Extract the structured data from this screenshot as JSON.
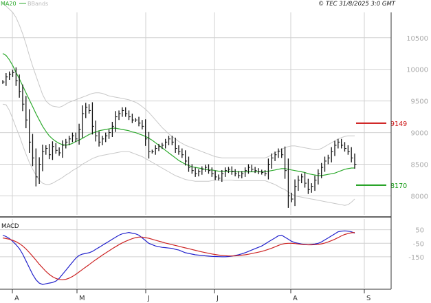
{
  "header": {
    "legend_ma": "MA20",
    "legend_bbands": "BBands",
    "copyright": "© TEC 31/8/2025 3:0 GMT"
  },
  "macd_panel": {
    "title": "MACD"
  },
  "colors": {
    "ma": "#2eaa2e",
    "bbands": "#c8c8c8",
    "price": "#111111",
    "resistance": "#cc1111",
    "support": "#119911",
    "macd": "#2222cc",
    "signal": "#cc2222",
    "grid": "#d0d0d0",
    "axis_text": "#aaaaaa"
  },
  "chart_data": [
    {
      "type": "ohlc",
      "ylim": [
        7700,
        10900
      ],
      "y_ticks": [
        {
          "value": 8000,
          "label": "8000"
        },
        {
          "value": 8500,
          "label": "8500"
        },
        {
          "value": 9000,
          "label": "9000"
        },
        {
          "value": 9500,
          "label": "9500"
        },
        {
          "value": 10000,
          "label": "10000"
        },
        {
          "value": 10500,
          "label": "10500"
        }
      ],
      "x_ticks": [
        "A",
        "M",
        "J",
        "J",
        "A",
        "S"
      ],
      "levels": [
        {
          "name": "resistance",
          "value": 9149,
          "label": "9149"
        },
        {
          "name": "support",
          "value": 8170,
          "label": "8170"
        }
      ],
      "price": [
        9800,
        9880,
        9920,
        9950,
        9820,
        9650,
        9450,
        9200,
        8850,
        8600,
        8300,
        8500,
        8700,
        8750,
        8650,
        8780,
        8720,
        8680,
        8800,
        8850,
        8900,
        8950,
        8900,
        9050,
        9300,
        9400,
        9350,
        9100,
        8950,
        8850,
        8900,
        8950,
        9000,
        9100,
        9250,
        9300,
        9350,
        9300,
        9250,
        9200,
        9200,
        9150,
        9100,
        8900,
        8700,
        8700,
        8750,
        8780,
        8800,
        8850,
        8900,
        8850,
        8750,
        8700,
        8650,
        8550,
        8450,
        8400,
        8350,
        8380,
        8420,
        8450,
        8400,
        8350,
        8300,
        8280,
        8350,
        8400,
        8420,
        8380,
        8350,
        8320,
        8350,
        8400,
        8450,
        8420,
        8400,
        8380,
        8370,
        8350,
        8500,
        8600,
        8650,
        8700,
        8650,
        8400,
        8000,
        7950,
        8150,
        8250,
        8300,
        8200,
        8100,
        8150,
        8250,
        8350,
        8450,
        8550,
        8600,
        8700,
        8800,
        8850,
        8800,
        8750,
        8700,
        8600,
        8500
      ],
      "ma20": [
        10250,
        10220,
        10150,
        10060,
        9950,
        9850,
        9740,
        9630,
        9520,
        9410,
        9300,
        9200,
        9100,
        9020,
        8950,
        8900,
        8860,
        8830,
        8810,
        8800,
        8810,
        8830,
        8860,
        8880,
        8910,
        8940,
        8970,
        8990,
        9010,
        9030,
        9040,
        9050,
        9060,
        9070,
        9070,
        9060,
        9050,
        9040,
        9030,
        9010,
        9000,
        8980,
        8960,
        8940,
        8910,
        8880,
        8840,
        8800,
        8760,
        8720,
        8680,
        8640,
        8600,
        8560,
        8530,
        8500,
        8480,
        8460,
        8450,
        8440,
        8430,
        8420,
        8410,
        8410,
        8400,
        8390,
        8390,
        8390,
        8390,
        8390,
        8380,
        8380,
        8380,
        8380,
        8380,
        8380,
        8380,
        8380,
        8380,
        8380,
        8390,
        8400,
        8410,
        8420,
        8430,
        8430,
        8420,
        8410,
        8400,
        8390,
        8380,
        8370,
        8350,
        8340,
        8330,
        8320,
        8320,
        8330,
        8340,
        8350,
        8360,
        8380,
        8400,
        8420,
        8430,
        8440,
        8440
      ],
      "bb_upper": [
        11050,
        11000,
        10950,
        10900,
        10820,
        10700,
        10560,
        10400,
        10220,
        10050,
        9900,
        9750,
        9600,
        9500,
        9450,
        9420,
        9410,
        9400,
        9420,
        9450,
        9480,
        9500,
        9520,
        9540,
        9560,
        9580,
        9600,
        9620,
        9630,
        9630,
        9620,
        9600,
        9580,
        9570,
        9560,
        9550,
        9540,
        9530,
        9520,
        9500,
        9480,
        9450,
        9410,
        9370,
        9320,
        9260,
        9200,
        9140,
        9080,
        9030,
        8980,
        8940,
        8900,
        8860,
        8830,
        8800,
        8780,
        8760,
        8740,
        8720,
        8700,
        8680,
        8660,
        8640,
        8620,
        8610,
        8600,
        8600,
        8600,
        8600,
        8600,
        8600,
        8600,
        8600,
        8600,
        8600,
        8600,
        8600,
        8600,
        8600,
        8620,
        8650,
        8680,
        8710,
        8740,
        8760,
        8780,
        8790,
        8790,
        8780,
        8770,
        8760,
        8750,
        8740,
        8730,
        8730,
        8750,
        8780,
        8810,
        8840,
        8870,
        8900,
        8920,
        8940,
        8950,
        8950,
        8950
      ],
      "bb_lower": [
        9450,
        9440,
        9350,
        9220,
        9080,
        8950,
        8800,
        8660,
        8530,
        8420,
        8330,
        8250,
        8200,
        8180,
        8180,
        8200,
        8230,
        8260,
        8290,
        8330,
        8360,
        8400,
        8430,
        8460,
        8500,
        8530,
        8560,
        8590,
        8610,
        8630,
        8640,
        8650,
        8660,
        8670,
        8680,
        8690,
        8700,
        8700,
        8700,
        8680,
        8660,
        8640,
        8620,
        8590,
        8560,
        8530,
        8500,
        8470,
        8440,
        8410,
        8380,
        8350,
        8320,
        8300,
        8280,
        8260,
        8250,
        8240,
        8230,
        8230,
        8230,
        8230,
        8230,
        8240,
        8250,
        8250,
        8250,
        8250,
        8250,
        8250,
        8240,
        8240,
        8240,
        8240,
        8240,
        8240,
        8240,
        8240,
        8240,
        8240,
        8220,
        8200,
        8180,
        8150,
        8120,
        8100,
        8060,
        8030,
        8000,
        7990,
        7980,
        7970,
        7960,
        7950,
        7940,
        7930,
        7920,
        7910,
        7900,
        7890,
        7880,
        7870,
        7860,
        7850,
        7860,
        7900,
        7950
      ]
    },
    {
      "type": "line",
      "title": "MACD",
      "ylim": [
        -380,
        130
      ],
      "y_ticks": [
        {
          "value": 50,
          "label": "50"
        },
        {
          "value": -50,
          "label": "-50"
        },
        {
          "value": -150,
          "label": "-150"
        }
      ],
      "series": [
        {
          "key": "macd",
          "values": [
            10,
            0,
            -15,
            -35,
            -60,
            -90,
            -130,
            -180,
            -230,
            -280,
            -320,
            -345,
            -355,
            -350,
            -345,
            -340,
            -330,
            -310,
            -280,
            -250,
            -220,
            -190,
            -160,
            -140,
            -130,
            -125,
            -120,
            -110,
            -95,
            -80,
            -65,
            -50,
            -35,
            -20,
            -5,
            10,
            20,
            25,
            30,
            25,
            20,
            10,
            -10,
            -30,
            -50,
            -60,
            -70,
            -75,
            -80,
            -82,
            -85,
            -88,
            -95,
            -100,
            -110,
            -120,
            -125,
            -130,
            -135,
            -138,
            -140,
            -143,
            -145,
            -147,
            -148,
            -149,
            -150,
            -150,
            -148,
            -145,
            -140,
            -135,
            -128,
            -120,
            -110,
            -100,
            -90,
            -80,
            -70,
            -55,
            -40,
            -25,
            -10,
            5,
            10,
            -5,
            -20,
            -35,
            -45,
            -50,
            -55,
            -58,
            -60,
            -58,
            -55,
            -50,
            -40,
            -25,
            -10,
            5,
            20,
            35,
            40,
            42,
            40,
            35,
            25
          ]
        },
        {
          "key": "signal",
          "values": [
            -10,
            -15,
            -20,
            -28,
            -38,
            -52,
            -70,
            -92,
            -118,
            -146,
            -175,
            -205,
            -232,
            -258,
            -280,
            -298,
            -310,
            -318,
            -320,
            -317,
            -308,
            -296,
            -280,
            -262,
            -244,
            -226,
            -208,
            -190,
            -172,
            -155,
            -138,
            -122,
            -106,
            -90,
            -75,
            -60,
            -47,
            -35,
            -25,
            -16,
            -8,
            -4,
            -4,
            -8,
            -13,
            -20,
            -27,
            -34,
            -41,
            -48,
            -54,
            -60,
            -66,
            -72,
            -78,
            -84,
            -90,
            -96,
            -102,
            -108,
            -114,
            -119,
            -124,
            -129,
            -133,
            -137,
            -140,
            -142,
            -144,
            -144,
            -143,
            -141,
            -138,
            -135,
            -131,
            -126,
            -121,
            -116,
            -110,
            -103,
            -95,
            -86,
            -76,
            -66,
            -57,
            -52,
            -50,
            -50,
            -52,
            -55,
            -58,
            -60,
            -61,
            -61,
            -60,
            -58,
            -54,
            -48,
            -40,
            -30,
            -20,
            -8,
            5,
            15,
            22,
            28,
            30
          ]
        }
      ]
    }
  ]
}
